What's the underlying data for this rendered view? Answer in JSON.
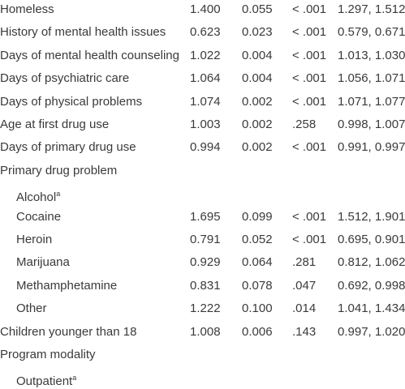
{
  "table": {
    "rows": [
      {
        "label": "Homeless",
        "values": [
          "1.400",
          "0.055",
          "< .001",
          "1.297, 1.512"
        ]
      },
      {
        "label": "History of mental health issues",
        "values": [
          "0.623",
          "0.023",
          "< .001",
          "0.579, 0.671"
        ]
      },
      {
        "label": "Days of mental health counseling",
        "values": [
          "1.022",
          "0.004",
          "< .001",
          "1.013, 1.030"
        ]
      },
      {
        "label": "Days of psychiatric care",
        "values": [
          "1.064",
          "0.004",
          "< .001",
          "1.056, 1.071"
        ]
      },
      {
        "label": "Days of physical problems",
        "values": [
          "1.074",
          "0.002",
          "< .001",
          "1.071, 1.077"
        ]
      },
      {
        "label": "Age at first drug use",
        "values": [
          "1.003",
          "0.002",
          ".258",
          "0.998, 1.007"
        ]
      },
      {
        "label": "Days of primary drug use",
        "values": [
          "0.994",
          "0.002",
          "< .001",
          "0.991, 0.997"
        ]
      },
      {
        "label": "Primary drug problem",
        "rows": [
          {
            "label": "Alcohol",
            "note": "a"
          },
          {
            "label": "Cocaine",
            "values": [
              "1.695",
              "0.099",
              "< .001",
              "1.512, 1.901"
            ]
          },
          {
            "label": "Heroin",
            "values": [
              "0.791",
              "0.052",
              "< .001",
              "0.695, 0.901"
            ]
          },
          {
            "label": "Marijuana",
            "values": [
              "0.929",
              "0.064",
              ".281",
              "0.812, 1.062"
            ]
          },
          {
            "label": "Methamphetamine",
            "values": [
              "0.831",
              "0.078",
              ".047",
              "0.692, 0.998"
            ]
          },
          {
            "label": "Other",
            "values": [
              "1.222",
              "0.100",
              ".014",
              "1.041, 1.434"
            ]
          }
        ]
      },
      {
        "label": "Children younger than 18",
        "values": [
          "1.008",
          "0.006",
          ".143",
          "0.997, 1.020"
        ]
      },
      {
        "label": "Program modality",
        "rows": [
          {
            "label": "Outpatient",
            "note": "a"
          }
        ]
      }
    ]
  }
}
